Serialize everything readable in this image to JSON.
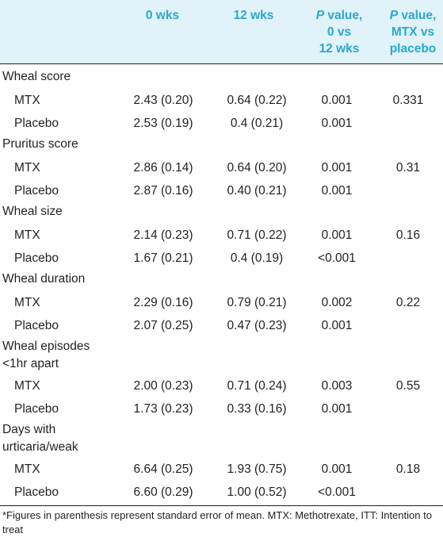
{
  "header": {
    "col_0wks": "0 wks",
    "col_12wks": "12 wks",
    "col_p1_italic": "P",
    "col_p1_line1": " value,",
    "col_p1_line2": "0 vs",
    "col_p1_line3": "12 wks",
    "col_p2_italic": "P",
    "col_p2_line1": " value,",
    "col_p2_line2": "MTX vs",
    "col_p2_line3": "placebo"
  },
  "sections": [
    {
      "title": "Wheal score",
      "title2": "",
      "rows": [
        {
          "label": "MTX",
          "wk0": "2.43 (0.20)",
          "wk12": "0.64 (0.22)",
          "p012": "0.001",
          "pmtx": "0.331"
        },
        {
          "label": "Placebo",
          "wk0": "2.53 (0.19)",
          "wk12": "0.4 (0.21)",
          "p012": "0.001",
          "pmtx": ""
        }
      ]
    },
    {
      "title": "Pruritus score",
      "title2": "",
      "rows": [
        {
          "label": "MTX",
          "wk0": "2.86 (0.14)",
          "wk12": "0.64 (0.20)",
          "p012": "0.001",
          "pmtx": "0.31"
        },
        {
          "label": "Placebo",
          "wk0": "2.87 (0.16)",
          "wk12": "0.40 (0.21)",
          "p012": "0.001",
          "pmtx": ""
        }
      ]
    },
    {
      "title": "Wheal size",
      "title2": "",
      "rows": [
        {
          "label": "MTX",
          "wk0": "2.14 (0.23)",
          "wk12": "0.71 (0.22)",
          "p012": "0.001",
          "pmtx": "0.16"
        },
        {
          "label": "Placebo",
          "wk0": "1.67 (0.21)",
          "wk12": "0.4 (0.19)",
          "p012": "<0.001",
          "pmtx": ""
        }
      ]
    },
    {
      "title": "Wheal duration",
      "title2": "",
      "rows": [
        {
          "label": "MTX",
          "wk0": "2.29 (0.16)",
          "wk12": "0.79 (0.21)",
          "p012": "0.002",
          "pmtx": "0.22"
        },
        {
          "label": "Placebo",
          "wk0": "2.07 (0.25)",
          "wk12": "0.47 (0.23)",
          "p012": "0.001",
          "pmtx": ""
        }
      ]
    },
    {
      "title": "Wheal episodes",
      "title2": "<1hr apart",
      "rows": [
        {
          "label": "MTX",
          "wk0": "2.00 (0.23)",
          "wk12": "0.71 (0.24)",
          "p012": "0.003",
          "pmtx": "0.55"
        },
        {
          "label": "Placebo",
          "wk0": "1.73 (0.23)",
          "wk12": "0.33 (0.16)",
          "p012": "0.001",
          "pmtx": ""
        }
      ]
    },
    {
      "title": "Days with",
      "title2": "urticaria/weak",
      "rows": [
        {
          "label": "MTX",
          "wk0": "6.64 (0.25)",
          "wk12": "1.93 (0.75)",
          "p012": "0.001",
          "pmtx": "0.18"
        },
        {
          "label": "Placebo",
          "wk0": "6.60 (0.29)",
          "wk12": "1.00 (0.52)",
          "p012": "<0.001",
          "pmtx": ""
        }
      ]
    }
  ],
  "footnote": "*Figures in parenthesis represent standard error of mean. MTX: Methotrexate, ITT: Intention to treat"
}
